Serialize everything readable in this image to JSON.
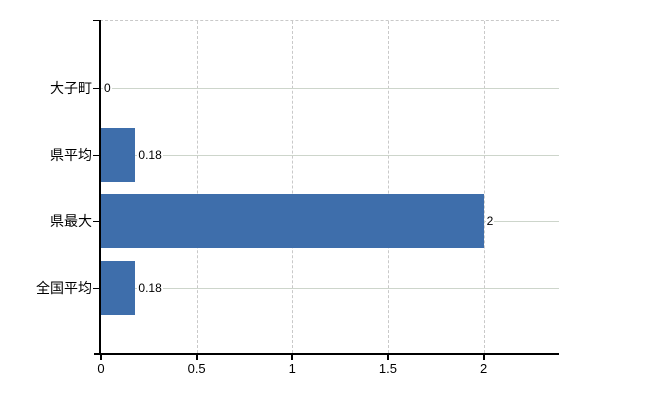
{
  "chart_data": {
    "type": "bar",
    "orientation": "horizontal",
    "title": "",
    "xlabel": "",
    "ylabel": "",
    "categories": [
      "大子町",
      "県平均",
      "県最大",
      "全国平均"
    ],
    "values": [
      0,
      0.18,
      2,
      0.18
    ],
    "value_labels": [
      "0",
      "0.18",
      "2",
      "0.18"
    ],
    "x_ticks": [
      0,
      0.5,
      1,
      1.5,
      2
    ],
    "x_tick_labels": [
      "0",
      "0.5",
      "1",
      "1.5",
      "2"
    ],
    "xlim": [
      0,
      2.4
    ],
    "grid": true,
    "legend": false,
    "bar_color": "#3e6eab",
    "axis_color": "#000000",
    "gridline_color_horizontal": "#cdd5cb",
    "gridline_color_vertical": "#c9c9c9",
    "background_color": "#ffffff"
  }
}
